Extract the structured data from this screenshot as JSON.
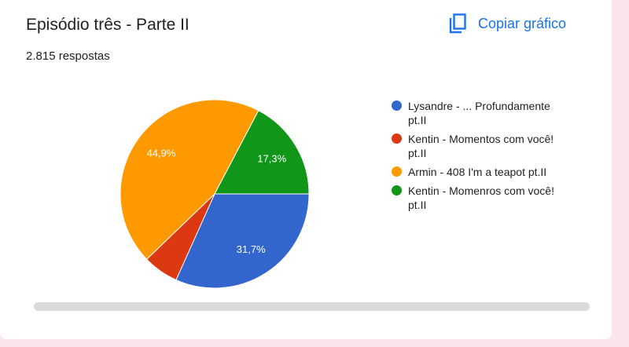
{
  "chart_data": {
    "type": "pie",
    "title": "Episódio três - Parte II",
    "subtitle": "2.815 respostas",
    "categories": [
      "Lysandre - ... Profundamente pt.II",
      "Kentin - Momentos com você! pt.II",
      "Armin - 408 I'm a teapot pt.II",
      "Kentin - Momenros com você! pt.II"
    ],
    "values": [
      31.7,
      6.1,
      44.9,
      17.3
    ],
    "value_labels": [
      "31,7%",
      null,
      "44,9%",
      "17,3%"
    ],
    "colors": [
      "#3366cc",
      "#dc3912",
      "#ff9900",
      "#109618"
    ],
    "legend": "right"
  },
  "copy_button": "Copiar gráfico"
}
